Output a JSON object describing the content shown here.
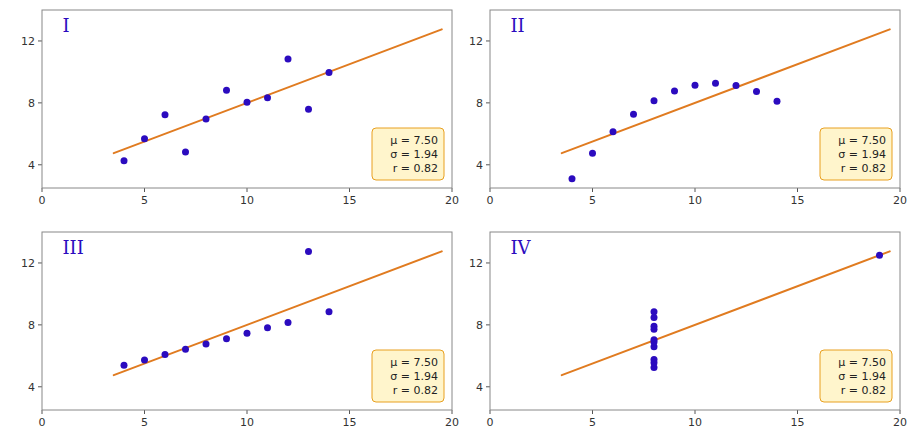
{
  "chart_data": [
    {
      "type": "scatter",
      "title": "I",
      "series": [
        {
          "type": "scatter",
          "color": "#2B0BBF",
          "x": [
            10,
            8,
            13,
            9,
            11,
            14,
            6,
            4,
            12,
            7,
            5
          ],
          "values": [
            8.04,
            6.95,
            7.58,
            8.81,
            8.33,
            9.96,
            7.24,
            4.26,
            10.84,
            4.82,
            5.68
          ]
        },
        {
          "type": "line",
          "color": "#E07B20",
          "x": [
            3.5,
            19.5
          ],
          "values": [
            4.75,
            12.75
          ]
        }
      ],
      "annotations": [
        "μ = 7.50",
        "σ = 1.94",
        "r = 0.82"
      ],
      "xlim": [
        0,
        20
      ],
      "ylim": [
        2.5,
        14
      ],
      "xticks": [
        0,
        5,
        10,
        15,
        20
      ],
      "yticks": [
        4,
        8,
        12
      ],
      "grid": false
    },
    {
      "type": "scatter",
      "title": "II",
      "series": [
        {
          "type": "scatter",
          "color": "#2B0BBF",
          "x": [
            10,
            8,
            13,
            9,
            11,
            14,
            6,
            4,
            12,
            7,
            5
          ],
          "values": [
            9.14,
            8.14,
            8.74,
            8.77,
            9.26,
            8.1,
            6.13,
            3.1,
            9.13,
            7.26,
            4.74
          ]
        },
        {
          "type": "line",
          "color": "#E07B20",
          "x": [
            3.5,
            19.5
          ],
          "values": [
            4.75,
            12.75
          ]
        }
      ],
      "annotations": [
        "μ = 7.50",
        "σ = 1.94",
        "r = 0.82"
      ],
      "xlim": [
        0,
        20
      ],
      "ylim": [
        2.5,
        14
      ],
      "xticks": [
        0,
        5,
        10,
        15,
        20
      ],
      "yticks": [
        4,
        8,
        12
      ],
      "grid": false
    },
    {
      "type": "scatter",
      "title": "III",
      "series": [
        {
          "type": "scatter",
          "color": "#2B0BBF",
          "x": [
            10,
            8,
            13,
            9,
            11,
            14,
            6,
            4,
            12,
            7,
            5
          ],
          "values": [
            7.46,
            6.77,
            12.74,
            7.11,
            7.81,
            8.84,
            6.08,
            5.39,
            8.15,
            6.42,
            5.73
          ]
        },
        {
          "type": "line",
          "color": "#E07B20",
          "x": [
            3.5,
            19.5
          ],
          "values": [
            4.75,
            12.75
          ]
        }
      ],
      "annotations": [
        "μ = 7.50",
        "σ = 1.94",
        "r = 0.82"
      ],
      "xlim": [
        0,
        20
      ],
      "ylim": [
        2.5,
        14
      ],
      "xticks": [
        0,
        5,
        10,
        15,
        20
      ],
      "yticks": [
        4,
        8,
        12
      ],
      "grid": false
    },
    {
      "type": "scatter",
      "title": "IV",
      "series": [
        {
          "type": "scatter",
          "color": "#2B0BBF",
          "x": [
            8,
            8,
            8,
            8,
            8,
            8,
            8,
            19,
            8,
            8,
            8
          ],
          "values": [
            6.58,
            5.76,
            7.71,
            8.84,
            8.47,
            7.04,
            5.25,
            12.5,
            5.56,
            7.91,
            6.89
          ]
        },
        {
          "type": "line",
          "color": "#E07B20",
          "x": [
            3.5,
            19.5
          ],
          "values": [
            4.75,
            12.75
          ]
        }
      ],
      "annotations": [
        "μ = 7.50",
        "σ = 1.94",
        "r = 0.82"
      ],
      "xlim": [
        0,
        20
      ],
      "ylim": [
        2.5,
        14
      ],
      "xticks": [
        0,
        5,
        10,
        15,
        20
      ],
      "yticks": [
        4,
        8,
        12
      ],
      "grid": false
    }
  ]
}
